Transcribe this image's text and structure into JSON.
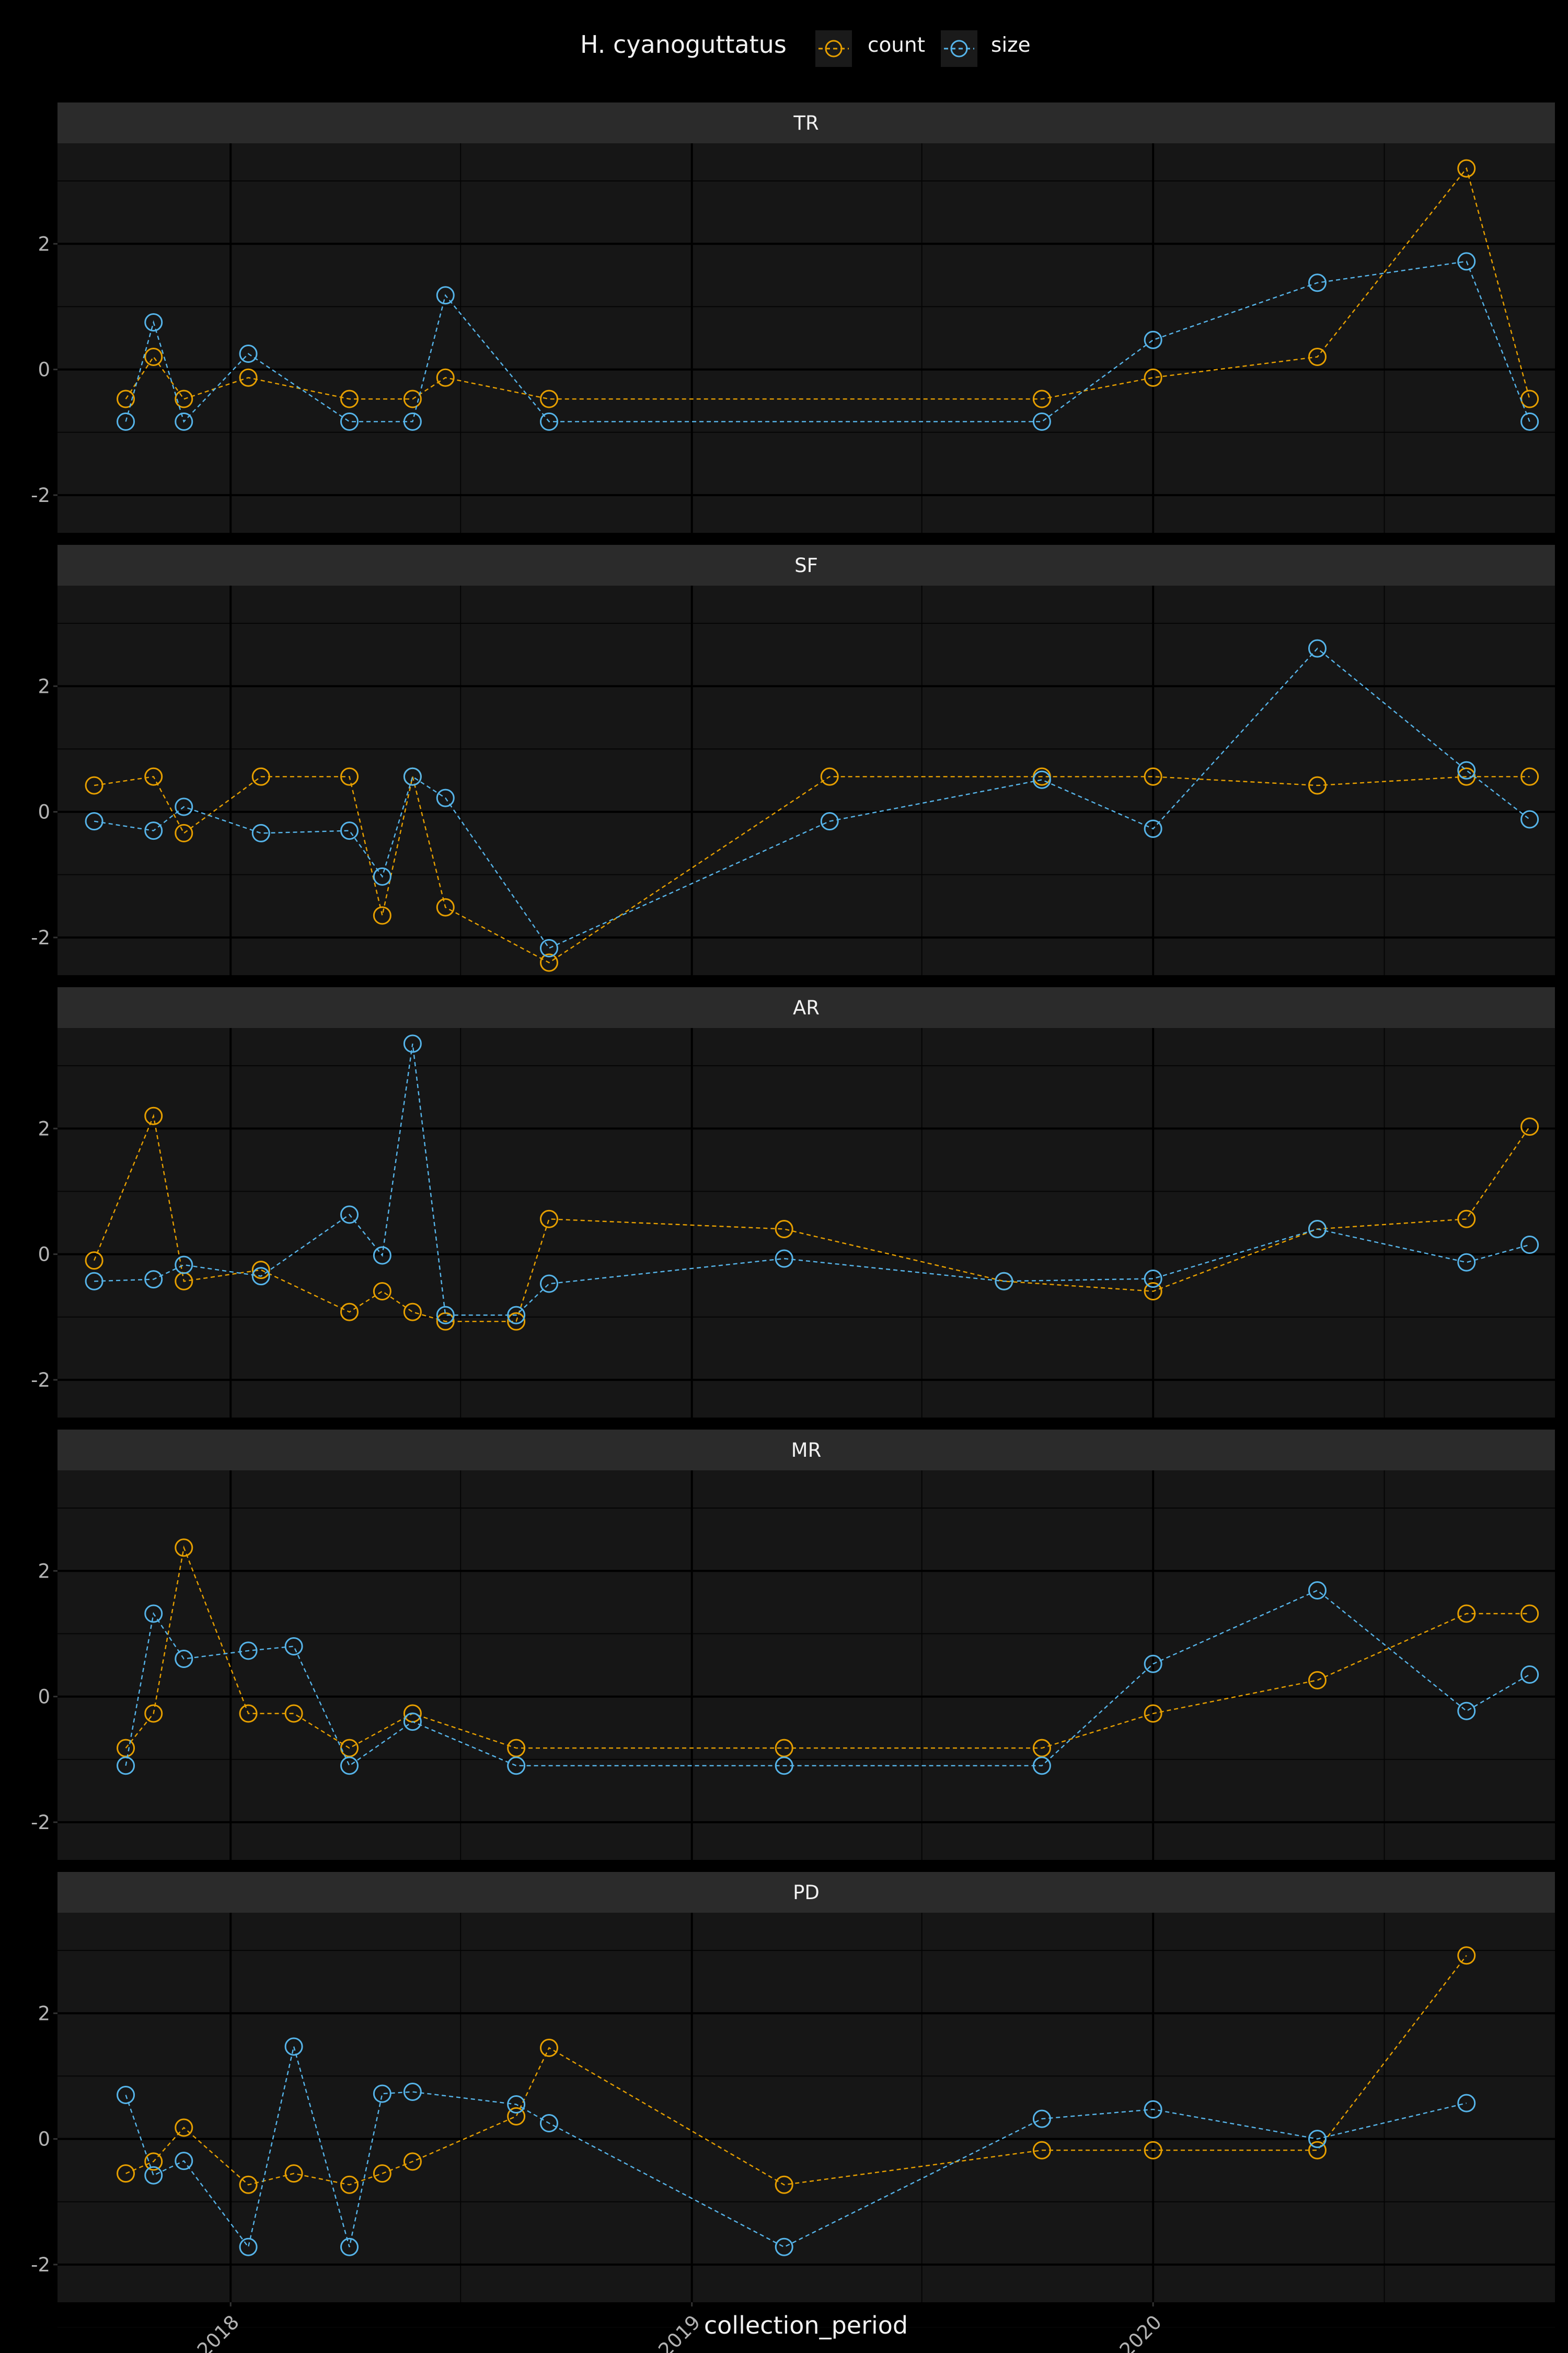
{
  "chart_data": {
    "type": "line",
    "legend": {
      "title": "H. cyanoguttatus",
      "position": "top",
      "entries": [
        {
          "label": "count",
          "color": "#E69F00"
        },
        {
          "label": "size",
          "color": "#56B4E9"
        }
      ]
    },
    "xlabel": "collection_period",
    "ylabel": "",
    "x_ticks": [
      "2018",
      "2019",
      "2020"
    ],
    "y_ticks": [
      "-2",
      "0",
      "2"
    ],
    "xlim": [
      "2017-08-17",
      "2020-11-14"
    ],
    "ylim": [
      -2.6,
      3.6
    ],
    "grid": true,
    "panels": [
      {
        "name": "TR",
        "series": [
          {
            "name": "count",
            "points": [
              [
                "2017-10-10",
                -0.47
              ],
              [
                "2017-11-01",
                0.2
              ],
              [
                "2017-11-25",
                -0.47
              ],
              [
                "2018-01-15",
                -0.13
              ],
              [
                "2018-04-05",
                -0.47
              ],
              [
                "2018-05-25",
                -0.47
              ],
              [
                "2018-06-20",
                -0.13
              ],
              [
                "2018-09-10",
                -0.47
              ],
              [
                "2019-10-05",
                -0.47
              ],
              [
                "2020-01-01",
                -0.13
              ],
              [
                "2020-05-10",
                0.2
              ],
              [
                "2020-09-05",
                3.2
              ],
              [
                "2020-10-25",
                -0.47
              ]
            ]
          },
          {
            "name": "size",
            "points": [
              [
                "2017-10-10",
                -0.83
              ],
              [
                "2017-11-01",
                0.75
              ],
              [
                "2017-11-25",
                -0.83
              ],
              [
                "2018-01-15",
                0.25
              ],
              [
                "2018-04-05",
                -0.83
              ],
              [
                "2018-05-25",
                -0.83
              ],
              [
                "2018-06-20",
                1.18
              ],
              [
                "2018-09-10",
                -0.83
              ],
              [
                "2019-10-05",
                -0.83
              ],
              [
                "2020-01-01",
                0.47
              ],
              [
                "2020-05-10",
                1.38
              ],
              [
                "2020-09-05",
                1.72
              ],
              [
                "2020-10-25",
                -0.83
              ]
            ]
          }
        ]
      },
      {
        "name": "SF",
        "series": [
          {
            "name": "count",
            "points": [
              [
                "2017-09-15",
                0.42
              ],
              [
                "2017-11-01",
                0.56
              ],
              [
                "2017-11-25",
                -0.34
              ],
              [
                "2018-01-25",
                0.56
              ],
              [
                "2018-04-05",
                0.56
              ],
              [
                "2018-05-01",
                -1.65
              ],
              [
                "2018-05-25",
                0.56
              ],
              [
                "2018-06-20",
                -1.52
              ],
              [
                "2018-09-10",
                -2.4
              ],
              [
                "2019-04-20",
                0.56
              ],
              [
                "2019-10-05",
                0.56
              ],
              [
                "2020-01-01",
                0.56
              ],
              [
                "2020-05-10",
                0.42
              ],
              [
                "2020-09-05",
                0.56
              ],
              [
                "2020-10-25",
                0.56
              ]
            ]
          },
          {
            "name": "size",
            "points": [
              [
                "2017-09-15",
                -0.15
              ],
              [
                "2017-11-01",
                -0.3
              ],
              [
                "2017-11-25",
                0.08
              ],
              [
                "2018-01-25",
                -0.34
              ],
              [
                "2018-04-05",
                -0.3
              ],
              [
                "2018-05-01",
                -1.03
              ],
              [
                "2018-05-25",
                0.56
              ],
              [
                "2018-06-20",
                0.22
              ],
              [
                "2018-09-10",
                -2.17
              ],
              [
                "2019-04-20",
                -0.15
              ],
              [
                "2019-10-05",
                0.51
              ],
              [
                "2020-01-01",
                -0.27
              ],
              [
                "2020-05-10",
                2.6
              ],
              [
                "2020-09-05",
                0.66
              ],
              [
                "2020-10-25",
                -0.12
              ]
            ]
          }
        ]
      },
      {
        "name": "AR",
        "series": [
          {
            "name": "count",
            "points": [
              [
                "2017-09-15",
                -0.1
              ],
              [
                "2017-11-01",
                2.2
              ],
              [
                "2017-11-25",
                -0.43
              ],
              [
                "2018-01-25",
                -0.25
              ],
              [
                "2018-04-05",
                -0.92
              ],
              [
                "2018-05-01",
                -0.59
              ],
              [
                "2018-05-25",
                -0.92
              ],
              [
                "2018-06-20",
                -1.07
              ],
              [
                "2018-08-15",
                -1.07
              ],
              [
                "2018-09-10",
                0.56
              ],
              [
                "2019-03-15",
                0.4
              ],
              [
                "2019-09-05",
                -0.43
              ],
              [
                "2020-01-01",
                -0.59
              ],
              [
                "2020-05-10",
                0.4
              ],
              [
                "2020-09-05",
                0.56
              ],
              [
                "2020-10-25",
                2.03
              ]
            ]
          },
          {
            "name": "size",
            "points": [
              [
                "2017-09-15",
                -0.43
              ],
              [
                "2017-11-01",
                -0.4
              ],
              [
                "2017-11-25",
                -0.17
              ],
              [
                "2018-01-25",
                -0.35
              ],
              [
                "2018-04-05",
                0.63
              ],
              [
                "2018-05-01",
                -0.02
              ],
              [
                "2018-05-25",
                3.35
              ],
              [
                "2018-06-20",
                -0.97
              ],
              [
                "2018-08-15",
                -0.97
              ],
              [
                "2018-09-10",
                -0.47
              ],
              [
                "2019-03-15",
                -0.07
              ],
              [
                "2019-09-05",
                -0.43
              ],
              [
                "2020-01-01",
                -0.39
              ],
              [
                "2020-05-10",
                0.4
              ],
              [
                "2020-09-05",
                -0.13
              ],
              [
                "2020-10-25",
                0.15
              ]
            ]
          }
        ]
      },
      {
        "name": "MR",
        "series": [
          {
            "name": "count",
            "points": [
              [
                "2017-10-10",
                -0.82
              ],
              [
                "2017-11-01",
                -0.27
              ],
              [
                "2017-11-25",
                2.37
              ],
              [
                "2018-01-15",
                -0.27
              ],
              [
                "2018-02-20",
                -0.27
              ],
              [
                "2018-04-05",
                -0.82
              ],
              [
                "2018-05-25",
                -0.27
              ],
              [
                "2018-08-15",
                -0.82
              ],
              [
                "2019-03-15",
                -0.82
              ],
              [
                "2019-10-05",
                -0.82
              ],
              [
                "2020-01-01",
                -0.27
              ],
              [
                "2020-05-10",
                0.26
              ],
              [
                "2020-09-05",
                1.32
              ],
              [
                "2020-10-25",
                1.32
              ]
            ]
          },
          {
            "name": "size",
            "points": [
              [
                "2017-10-10",
                -1.1
              ],
              [
                "2017-11-01",
                1.32
              ],
              [
                "2017-11-25",
                0.6
              ],
              [
                "2018-01-15",
                0.73
              ],
              [
                "2018-02-20",
                0.8
              ],
              [
                "2018-04-05",
                -1.1
              ],
              [
                "2018-05-25",
                -0.4
              ],
              [
                "2018-08-15",
                -1.1
              ],
              [
                "2019-03-15",
                -1.1
              ],
              [
                "2019-10-05",
                -1.1
              ],
              [
                "2020-01-01",
                0.52
              ],
              [
                "2020-05-10",
                1.69
              ],
              [
                "2020-09-05",
                -0.23
              ],
              [
                "2020-10-25",
                0.35
              ]
            ]
          }
        ]
      },
      {
        "name": "PD",
        "series": [
          {
            "name": "count",
            "points": [
              [
                "2017-10-10",
                -0.55
              ],
              [
                "2017-11-01",
                -0.36
              ],
              [
                "2017-11-25",
                0.18
              ],
              [
                "2018-01-15",
                -0.73
              ],
              [
                "2018-02-20",
                -0.55
              ],
              [
                "2018-04-05",
                -0.73
              ],
              [
                "2018-05-01",
                -0.55
              ],
              [
                "2018-05-25",
                -0.36
              ],
              [
                "2018-08-15",
                0.36
              ],
              [
                "2018-09-10",
                1.45
              ],
              [
                "2019-03-15",
                -0.73
              ],
              [
                "2019-10-05",
                -0.18
              ],
              [
                "2020-01-01",
                -0.18
              ],
              [
                "2020-05-10",
                -0.18
              ],
              [
                "2020-09-05",
                2.92
              ]
            ]
          },
          {
            "name": "size",
            "points": [
              [
                "2017-10-10",
                0.7
              ],
              [
                "2017-11-01",
                -0.58
              ],
              [
                "2017-11-25",
                -0.35
              ],
              [
                "2018-01-15",
                -1.72
              ],
              [
                "2018-02-20",
                1.47
              ],
              [
                "2018-04-05",
                -1.72
              ],
              [
                "2018-05-01",
                0.72
              ],
              [
                "2018-05-25",
                0.75
              ],
              [
                "2018-08-15",
                0.55
              ],
              [
                "2018-09-10",
                0.25
              ],
              [
                "2019-03-15",
                -1.72
              ],
              [
                "2019-10-05",
                0.32
              ],
              [
                "2020-01-01",
                0.47
              ],
              [
                "2020-05-10",
                0.0
              ],
              [
                "2020-09-05",
                0.57
              ]
            ]
          }
        ]
      }
    ]
  }
}
